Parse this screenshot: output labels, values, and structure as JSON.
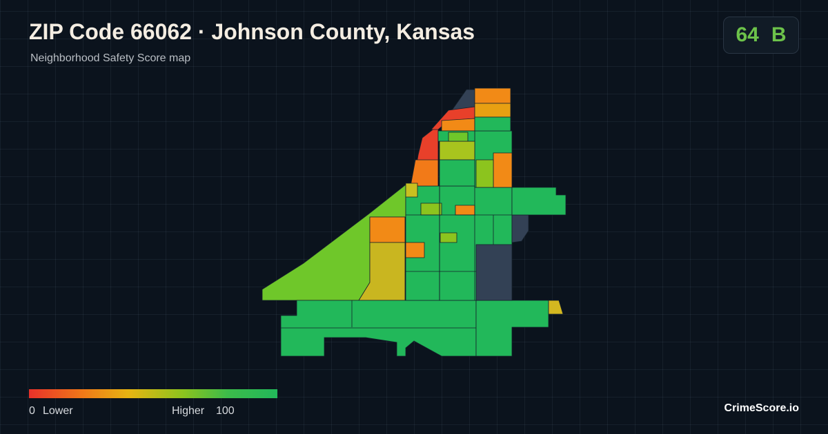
{
  "header": {
    "title": "ZIP Code 66062 · Johnson County, Kansas",
    "subtitle": "Neighborhood Safety Score map"
  },
  "score": {
    "value": 64,
    "grade": "B"
  },
  "legend": {
    "min": 0,
    "min_label": "Lower",
    "max_label": "Higher",
    "max": 100
  },
  "brand": "CrimeScore.io"
}
